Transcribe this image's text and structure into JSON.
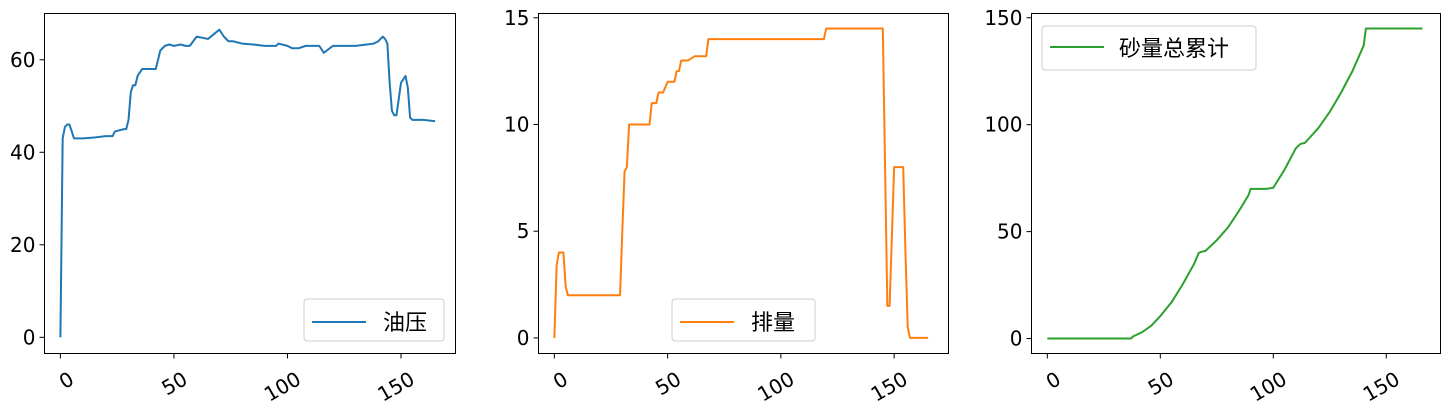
{
  "chart_data": [
    {
      "type": "line",
      "legend": "油压",
      "legend_position": "lower-right",
      "color": "#1f77b4",
      "xlim": [
        -7,
        174
      ],
      "ylim": [
        -3.5,
        70
      ],
      "xticks": [
        0,
        50,
        100,
        150
      ],
      "yticks": [
        0,
        20,
        40,
        60
      ],
      "grid": false,
      "series": [
        {
          "name": "油压",
          "x": [
            0,
            1,
            2,
            3,
            4,
            5,
            6,
            8,
            10,
            15,
            20,
            23,
            24,
            28,
            29,
            30,
            31,
            32,
            33,
            34,
            36,
            40,
            42,
            44,
            46,
            48,
            50,
            53,
            55,
            57,
            60,
            65,
            70,
            72,
            74,
            76,
            80,
            85,
            90,
            95,
            96,
            100,
            102,
            105,
            108,
            110,
            112,
            114,
            116,
            120,
            125,
            130,
            135,
            138,
            140,
            142,
            143,
            144,
            145,
            146,
            147,
            148,
            150,
            152,
            153,
            154,
            155,
            160,
            165
          ],
          "y": [
            0,
            43,
            45.5,
            46,
            46,
            44.5,
            43,
            43,
            43,
            43.2,
            43.5,
            43.5,
            44.5,
            45,
            45,
            47,
            53,
            54.5,
            54.5,
            56.5,
            58,
            58,
            58,
            62,
            63,
            63.3,
            63,
            63.3,
            63,
            63,
            65,
            64.5,
            66.5,
            65,
            64,
            64,
            63.5,
            63.3,
            63,
            63,
            63.5,
            63,
            62.5,
            62.5,
            63,
            63,
            63,
            63,
            61.5,
            63,
            63,
            63,
            63.3,
            63.5,
            64,
            65,
            64.5,
            63.5,
            55,
            49,
            48,
            48,
            55,
            56.5,
            54,
            47.5,
            47,
            47,
            46.7
          ]
        }
      ]
    },
    {
      "type": "line",
      "legend": "排量",
      "legend_position": "lower-center",
      "color": "#ff7f0e",
      "xlim": [
        -7,
        174
      ],
      "ylim": [
        -0.73,
        15.2
      ],
      "xticks": [
        0,
        50,
        100,
        150
      ],
      "yticks": [
        0,
        5,
        10,
        15
      ],
      "grid": false,
      "series": [
        {
          "name": "排量",
          "x": [
            0,
            1,
            2,
            4,
            5,
            6,
            28,
            29,
            30,
            31,
            32,
            33,
            42,
            43,
            45,
            46,
            47,
            48,
            50,
            51,
            53,
            54,
            55,
            56,
            58,
            59,
            62,
            63,
            67,
            68,
            118,
            119,
            120,
            145,
            146,
            147,
            148,
            150,
            153,
            154,
            155,
            156,
            157,
            160,
            165
          ],
          "y": [
            0,
            3.4,
            4,
            4,
            2.4,
            2,
            2,
            2,
            5,
            7.8,
            8,
            10,
            10,
            11,
            11,
            11.5,
            11.5,
            11.5,
            12,
            12,
            12,
            12.5,
            12.5,
            13,
            13,
            13,
            13.2,
            13.2,
            13.2,
            14,
            14,
            14,
            14.5,
            14.5,
            8,
            1.5,
            1.5,
            8,
            8,
            8,
            4,
            0.5,
            0,
            0,
            0
          ]
        }
      ]
    },
    {
      "type": "line",
      "legend": "砂量总累计",
      "legend_position": "upper-left",
      "color": "#2ca02c",
      "xlim": [
        -7,
        174
      ],
      "ylim": [
        -7,
        152
      ],
      "xticks": [
        0,
        50,
        100,
        150
      ],
      "yticks": [
        0,
        50,
        100,
        150
      ],
      "grid": false,
      "series": [
        {
          "name": "砂量总累计",
          "x": [
            0,
            10,
            20,
            30,
            37,
            38,
            42,
            46,
            50,
            55,
            60,
            65,
            67,
            68,
            70,
            75,
            80,
            85,
            89,
            90,
            95,
            97,
            100,
            105,
            110,
            112,
            114,
            120,
            125,
            130,
            135,
            140,
            141,
            145,
            150,
            155,
            160,
            166
          ],
          "y": [
            0,
            0,
            0,
            0,
            0,
            1,
            3,
            6,
            10.5,
            17,
            25.5,
            35,
            40,
            40.5,
            41,
            46,
            52,
            60,
            67,
            70,
            70,
            70,
            70.5,
            79,
            89,
            91,
            91.5,
            98.5,
            106,
            115,
            125,
            137,
            145,
            145,
            145,
            145,
            145,
            145
          ]
        }
      ]
    }
  ]
}
